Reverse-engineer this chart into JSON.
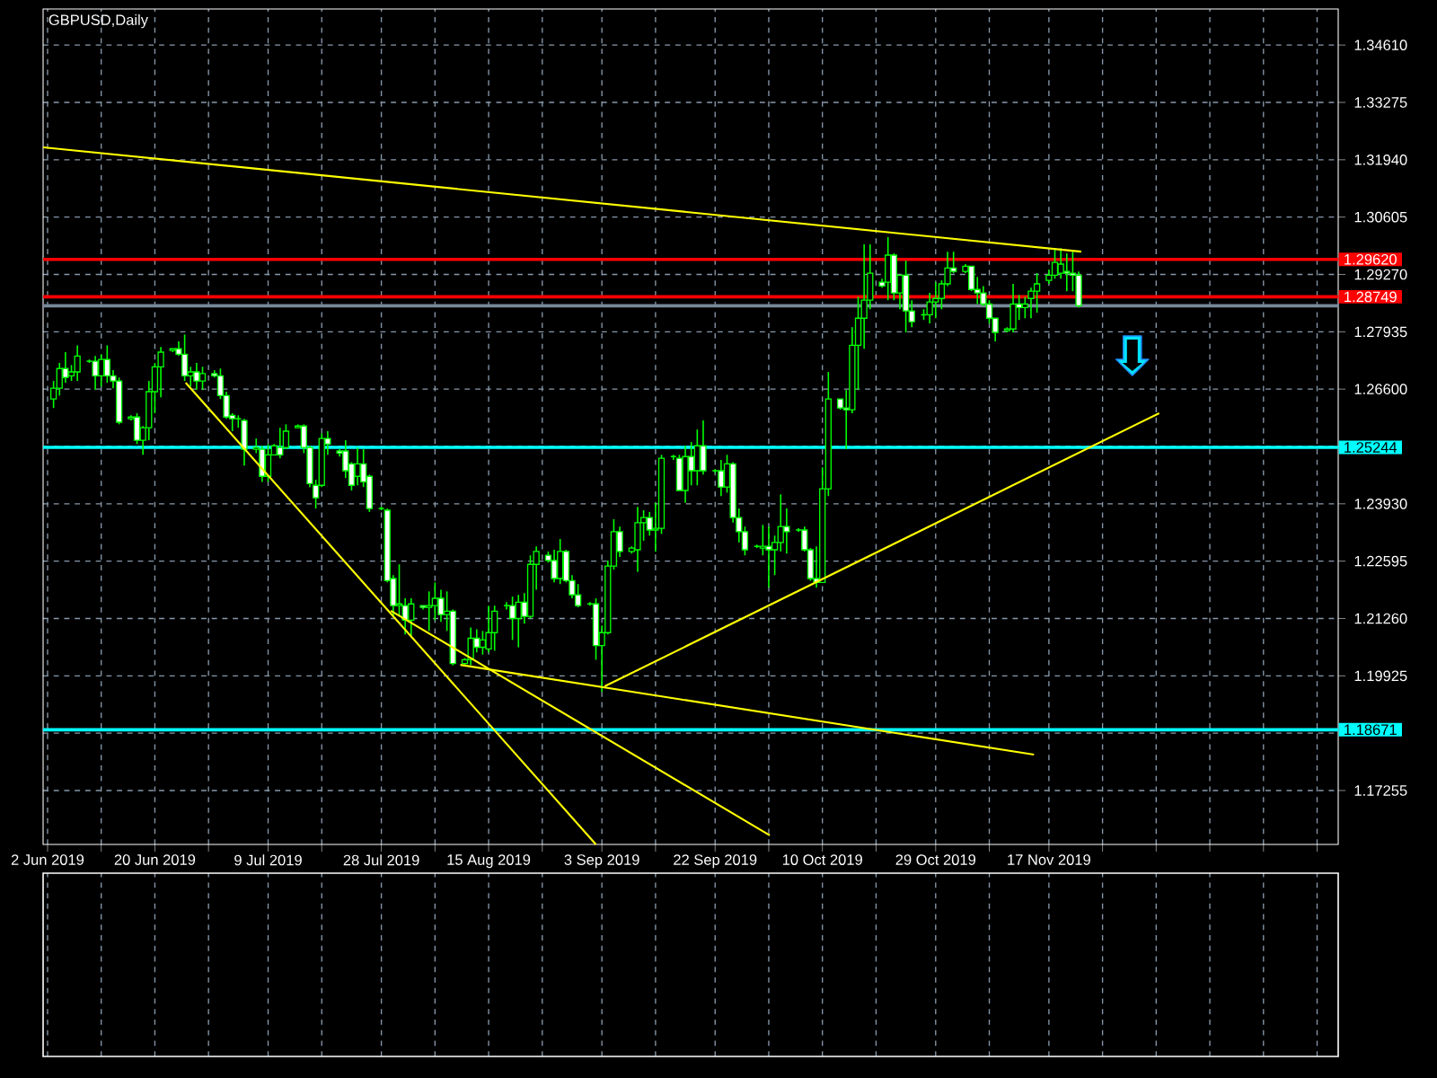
{
  "chart_data": {
    "type": "candlestick",
    "title": "GBPUSD,Daily",
    "color": "#00ff00",
    "x": [
      "2019-06-03",
      "2019-06-04",
      "2019-06-05",
      "2019-06-06",
      "2019-06-07",
      "2019-06-09",
      "2019-06-10",
      "2019-06-11",
      "2019-06-12",
      "2019-06-13",
      "2019-06-14",
      "2019-06-16",
      "2019-06-17",
      "2019-06-18",
      "2019-06-19",
      "2019-06-20",
      "2019-06-21",
      "2019-06-23",
      "2019-06-24",
      "2019-06-25",
      "2019-06-26",
      "2019-06-27",
      "2019-06-28",
      "2019-06-30",
      "2019-07-01",
      "2019-07-02",
      "2019-07-03",
      "2019-07-04",
      "2019-07-05",
      "2019-07-07",
      "2019-07-08",
      "2019-07-09",
      "2019-07-10",
      "2019-07-11",
      "2019-07-12",
      "2019-07-14",
      "2019-07-15",
      "2019-07-16",
      "2019-07-17",
      "2019-07-18",
      "2019-07-19",
      "2019-07-21",
      "2019-07-22",
      "2019-07-23",
      "2019-07-24",
      "2019-07-25",
      "2019-07-26",
      "2019-07-28",
      "2019-07-29",
      "2019-07-30",
      "2019-07-31",
      "2019-08-01",
      "2019-08-02",
      "2019-08-04",
      "2019-08-05",
      "2019-08-06",
      "2019-08-07",
      "2019-08-08",
      "2019-08-09",
      "2019-08-11",
      "2019-08-12",
      "2019-08-13",
      "2019-08-14",
      "2019-08-15",
      "2019-08-16",
      "2019-08-18",
      "2019-08-19",
      "2019-08-20",
      "2019-08-21",
      "2019-08-22",
      "2019-08-23",
      "2019-08-25",
      "2019-08-26",
      "2019-08-27",
      "2019-08-28",
      "2019-08-29",
      "2019-08-30",
      "2019-09-01",
      "2019-09-02",
      "2019-09-03",
      "2019-09-04",
      "2019-09-05",
      "2019-09-06",
      "2019-09-08",
      "2019-09-09",
      "2019-09-10",
      "2019-09-11",
      "2019-09-12",
      "2019-09-13",
      "2019-09-15",
      "2019-09-16",
      "2019-09-17",
      "2019-09-18",
      "2019-09-19",
      "2019-09-20",
      "2019-09-22",
      "2019-09-23",
      "2019-09-24",
      "2019-09-25",
      "2019-09-26",
      "2019-09-27",
      "2019-09-29",
      "2019-09-30",
      "2019-10-01",
      "2019-10-02",
      "2019-10-03",
      "2019-10-04",
      "2019-10-06",
      "2019-10-07",
      "2019-10-08",
      "2019-10-09",
      "2019-10-10",
      "2019-10-11",
      "2019-10-13",
      "2019-10-14",
      "2019-10-15",
      "2019-10-16",
      "2019-10-17",
      "2019-10-18",
      "2019-10-20",
      "2019-10-21",
      "2019-10-22",
      "2019-10-23",
      "2019-10-24",
      "2019-10-25",
      "2019-10-27",
      "2019-10-28",
      "2019-10-29",
      "2019-10-30",
      "2019-10-31",
      "2019-11-01",
      "2019-11-03",
      "2019-11-04",
      "2019-11-05",
      "2019-11-06",
      "2019-11-07",
      "2019-11-08",
      "2019-11-10",
      "2019-11-11",
      "2019-11-12",
      "2019-11-13",
      "2019-11-14",
      "2019-11-15",
      "2019-11-17",
      "2019-11-18",
      "2019-11-19",
      "2019-11-20",
      "2019-11-21",
      "2019-11-22"
    ],
    "ohlc": [
      [
        1.2637,
        1.2679,
        1.2616,
        1.2662
      ],
      [
        1.2662,
        1.2721,
        1.2645,
        1.2708
      ],
      [
        1.2708,
        1.2746,
        1.2675,
        1.2687
      ],
      [
        1.2691,
        1.2716,
        1.2679,
        1.27
      ],
      [
        1.27,
        1.2762,
        1.2679,
        1.2737
      ],
      [
        1.2725,
        1.2729,
        1.2721,
        1.2725
      ],
      [
        1.2725,
        1.2737,
        1.2658,
        1.2691
      ],
      [
        1.2691,
        1.2741,
        1.2666,
        1.2729
      ],
      [
        1.2729,
        1.2762,
        1.2675,
        1.2691
      ],
      [
        1.2691,
        1.2704,
        1.2662,
        1.2679
      ],
      [
        1.2679,
        1.2687,
        1.2578,
        1.2583
      ],
      [
        1.2591,
        1.2599,
        1.2587,
        1.2595
      ],
      [
        1.2595,
        1.2604,
        1.2532,
        1.2541
      ],
      [
        1.2541,
        1.2574,
        1.2507,
        1.257
      ],
      [
        1.257,
        1.2679,
        1.2541,
        1.2654
      ],
      [
        1.2654,
        1.2721,
        1.2604,
        1.2712
      ],
      [
        1.2712,
        1.2758,
        1.2641,
        1.2746
      ],
      [
        1.275,
        1.2754,
        1.2746,
        1.2754
      ],
      [
        1.2754,
        1.2771,
        1.2737,
        1.2741
      ],
      [
        1.2741,
        1.2787,
        1.2679,
        1.2691
      ],
      [
        1.2691,
        1.2712,
        1.2666,
        1.27
      ],
      [
        1.27,
        1.2721,
        1.2658,
        1.2679
      ],
      [
        1.2679,
        1.2712,
        1.2658,
        1.2696
      ],
      [
        1.2696,
        1.2704,
        1.2687,
        1.2691
      ],
      [
        1.2691,
        1.2708,
        1.2637,
        1.2645
      ],
      [
        1.2645,
        1.2654,
        1.2591,
        1.2595
      ],
      [
        1.2599,
        1.2604,
        1.2562,
        1.2591
      ],
      [
        1.2591,
        1.2599,
        1.257,
        1.2591
      ],
      [
        1.2587,
        1.2591,
        1.2482,
        1.252
      ],
      [
        1.252,
        1.2545,
        1.2511,
        1.2524
      ],
      [
        1.252,
        1.2528,
        1.2444,
        1.2457
      ],
      [
        1.2457,
        1.2532,
        1.2444,
        1.2507
      ],
      [
        1.2507,
        1.2532,
        1.2507,
        1.2528
      ],
      [
        1.2524,
        1.257,
        1.2499,
        1.2507
      ],
      [
        1.2524,
        1.2578,
        1.252,
        1.2562
      ],
      [
        1.257,
        1.2578,
        1.257,
        1.2574
      ],
      [
        1.2574,
        1.2578,
        1.2511,
        1.2524
      ],
      [
        1.2524,
        1.2528,
        1.2432,
        1.244
      ],
      [
        1.2436,
        1.2449,
        1.2382,
        1.2407
      ],
      [
        1.2436,
        1.2557,
        1.2432,
        1.2545
      ],
      [
        1.2545,
        1.2562,
        1.2507,
        1.2532
      ],
      [
        1.2516,
        1.252,
        1.2503,
        1.2511
      ],
      [
        1.2516,
        1.2541,
        1.2453,
        1.247
      ],
      [
        1.2486,
        1.249,
        1.2424,
        1.2436
      ],
      [
        1.2457,
        1.2524,
        1.2436,
        1.2486
      ],
      [
        1.2486,
        1.252,
        1.2432,
        1.2444
      ],
      [
        1.2457,
        1.2461,
        1.2374,
        1.2382
      ],
      [
        1.2382,
        1.2386,
        1.2378,
        1.2382
      ],
      [
        1.2378,
        1.2382,
        1.221,
        1.2214
      ],
      [
        1.2219,
        1.2227,
        1.2131,
        1.2156
      ],
      [
        1.2156,
        1.2252,
        1.2131,
        1.216
      ],
      [
        1.2156,
        1.2173,
        1.2089,
        1.2122
      ],
      [
        1.2122,
        1.2173,
        1.2084,
        1.216
      ],
      [
        1.2156,
        1.2156,
        1.2147,
        1.2152
      ],
      [
        1.2152,
        1.2189,
        1.2097,
        1.2156
      ],
      [
        1.2156,
        1.221,
        1.2122,
        1.2173
      ],
      [
        1.2173,
        1.2193,
        1.2118,
        1.2135
      ],
      [
        1.2135,
        1.2189,
        1.2097,
        1.2143
      ],
      [
        1.2143,
        1.2147,
        1.2017,
        1.2021
      ],
      [
        1.2021,
        1.2034,
        1.2017,
        1.203
      ],
      [
        1.203,
        1.2105,
        1.2017,
        1.208
      ],
      [
        1.208,
        1.2101,
        1.2047,
        1.2059
      ],
      [
        1.2059,
        1.2097,
        1.2042,
        1.2076
      ],
      [
        1.2055,
        1.2156,
        1.2047,
        1.2093
      ],
      [
        1.2093,
        1.2156,
        1.2051,
        1.2143
      ],
      [
        1.2156,
        1.2164,
        1.2147,
        1.2156
      ],
      [
        1.2156,
        1.2177,
        1.2076,
        1.2126
      ],
      [
        1.2126,
        1.2181,
        1.2059,
        1.2164
      ],
      [
        1.2164,
        1.2185,
        1.2114,
        1.2131
      ],
      [
        1.2131,
        1.2273,
        1.2126,
        1.2252
      ],
      [
        1.2252,
        1.2294,
        1.2193,
        1.2282
      ],
      [
        1.2273,
        1.2282,
        1.2256,
        1.2261
      ],
      [
        1.2261,
        1.2286,
        1.221,
        1.2219
      ],
      [
        1.2219,
        1.2311,
        1.2206,
        1.2282
      ],
      [
        1.2282,
        1.2286,
        1.221,
        1.2214
      ],
      [
        1.2214,
        1.2227,
        1.2173,
        1.2181
      ],
      [
        1.2181,
        1.2206,
        1.2152,
        1.2156
      ],
      [
        1.216,
        1.2164,
        1.2156,
        1.216
      ],
      [
        1.216,
        1.2173,
        1.203,
        1.2063
      ],
      [
        1.2063,
        1.211,
        1.1955,
        1.2093
      ],
      [
        1.2093,
        1.2261,
        1.2089,
        1.2248
      ],
      [
        1.2248,
        1.2357,
        1.224,
        1.2328
      ],
      [
        1.2328,
        1.234,
        1.2269,
        1.2282
      ],
      [
        1.2282,
        1.2294,
        1.2277,
        1.229
      ],
      [
        1.2286,
        1.2386,
        1.2235,
        1.2349
      ],
      [
        1.2349,
        1.2378,
        1.2307,
        1.2361
      ],
      [
        1.2361,
        1.2374,
        1.2319,
        1.2332
      ],
      [
        1.2332,
        1.2395,
        1.2282,
        1.2336
      ],
      [
        1.2336,
        1.2507,
        1.2323,
        1.2499
      ],
      [
        1.2503,
        1.2507,
        1.2495,
        1.2503
      ],
      [
        1.2499,
        1.2507,
        1.2424,
        1.2424
      ],
      [
        1.2424,
        1.2528,
        1.2395,
        1.2503
      ],
      [
        1.2503,
        1.2537,
        1.2436,
        1.247
      ],
      [
        1.247,
        1.2566,
        1.2436,
        1.2528
      ],
      [
        1.2528,
        1.2587,
        1.2461,
        1.247
      ],
      [
        1.247,
        1.2474,
        1.2465,
        1.247
      ],
      [
        1.247,
        1.2495,
        1.2411,
        1.2432
      ],
      [
        1.2432,
        1.2507,
        1.2419,
        1.2486
      ],
      [
        1.2486,
        1.249,
        1.2349,
        1.2361
      ],
      [
        1.2361,
        1.2382,
        1.2303,
        1.2328
      ],
      [
        1.2328,
        1.234,
        1.2273,
        1.2286
      ],
      [
        1.2294,
        1.2298,
        1.229,
        1.2294
      ],
      [
        1.229,
        1.2344,
        1.2273,
        1.2294
      ],
      [
        1.2294,
        1.234,
        1.2198,
        1.2286
      ],
      [
        1.2286,
        1.2319,
        1.2227,
        1.2303
      ],
      [
        1.2303,
        1.2415,
        1.2282,
        1.234
      ],
      [
        1.234,
        1.2382,
        1.2277,
        1.2328
      ],
      [
        1.2332,
        1.2336,
        1.2328,
        1.2332
      ],
      [
        1.2332,
        1.234,
        1.2282,
        1.2286
      ],
      [
        1.2286,
        1.229,
        1.2214,
        1.2219
      ],
      [
        1.2219,
        1.2294,
        1.2198,
        1.221
      ],
      [
        1.221,
        1.2478,
        1.221,
        1.2428
      ],
      [
        1.2428,
        1.27,
        1.2411,
        1.2637
      ],
      [
        1.2637,
        1.2637,
        1.2612,
        1.2616
      ],
      [
        1.2616,
        1.2658,
        1.252,
        1.2612
      ],
      [
        1.2612,
        1.2804,
        1.2604,
        1.2762
      ],
      [
        1.2762,
        1.2875,
        1.2658,
        1.2825
      ],
      [
        1.2825,
        1.2997,
        1.2754,
        1.2867
      ],
      [
        1.2867,
        1.2997,
        1.2846,
        1.293
      ],
      [
        1.2909,
        1.2917,
        1.2896,
        1.29
      ],
      [
        1.2909,
        1.3014,
        1.2867,
        1.2972
      ],
      [
        1.2972,
        1.2976,
        1.2867,
        1.2884
      ],
      [
        1.2884,
        1.2925,
        1.2846,
        1.2925
      ],
      [
        1.2925,
        1.2959,
        1.2792,
        1.2842
      ],
      [
        1.2842,
        1.2867,
        1.2804,
        1.2817
      ],
      [
        1.2833,
        1.2846,
        1.2821,
        1.2833
      ],
      [
        1.2833,
        1.2884,
        1.2813,
        1.2863
      ],
      [
        1.2863,
        1.2909,
        1.2825,
        1.2871
      ],
      [
        1.2871,
        1.2913,
        1.2846,
        1.2905
      ],
      [
        1.2905,
        1.298,
        1.29,
        1.2942
      ],
      [
        1.2942,
        1.298,
        1.293,
        1.2934
      ],
      [
        1.2934,
        1.2951,
        1.293,
        1.2946
      ],
      [
        1.2946,
        1.2946,
        1.2888,
        1.2892
      ],
      [
        1.2892,
        1.2921,
        1.2858,
        1.2884
      ],
      [
        1.2884,
        1.29,
        1.2854,
        1.2858
      ],
      [
        1.2858,
        1.2867,
        1.2813,
        1.2825
      ],
      [
        1.2825,
        1.2825,
        1.2771,
        1.2792
      ],
      [
        1.2796,
        1.2804,
        1.2792,
        1.28
      ],
      [
        1.28,
        1.2905,
        1.2792,
        1.2858
      ],
      [
        1.2858,
        1.2879,
        1.2821,
        1.285
      ],
      [
        1.285,
        1.2875,
        1.2825,
        1.2858
      ],
      [
        1.2871,
        1.2896,
        1.2825,
        1.2888
      ],
      [
        1.2888,
        1.293,
        1.2838,
        1.2905
      ],
      [
        1.2913,
        1.2938,
        1.2905,
        1.2925
      ],
      [
        1.2925,
        1.2988,
        1.2917,
        1.2955
      ],
      [
        1.293,
        1.2988,
        1.2917,
        1.2951
      ],
      [
        1.2934,
        1.2976,
        1.2888,
        1.293
      ],
      [
        1.293,
        1.298,
        1.2888,
        1.2925
      ],
      [
        1.2925,
        1.2934,
        1.285,
        1.2854
      ]
    ],
    "series": [
      {
        "type": "line",
        "color": "#ffff00",
        "x": [
          "2019-06-01T06:00",
          "2019-11-22T10:00"
        ],
        "values": [
          1.3223,
          1.298
        ]
      },
      {
        "type": "line",
        "color": "#ffff00",
        "x": [
          "2019-06-25T04:00",
          "2019-09-02"
        ],
        "values": [
          1.2675,
          1.16
        ]
      },
      {
        "type": "line",
        "color": "#ffff00",
        "x": [
          "2019-07-29T14:00",
          "2019-10-01T04:00"
        ],
        "values": [
          1.2144,
          1.1621
        ]
      },
      {
        "type": "line",
        "color": "#ffff00",
        "x": [
          "2019-08-10T06:00",
          "2019-11-14T12:00"
        ],
        "values": [
          1.2018,
          1.1809
        ]
      },
      {
        "type": "line",
        "color": "#ffff00",
        "x": [
          "2019-09-03T11:00",
          "2019-12-05T12:00"
        ],
        "values": [
          1.1968,
          1.2604
        ]
      }
    ],
    "xlim": [
      "2019-06-01T06:00",
      "2020-01-04T13:00"
    ],
    "ylim": [
      1.16,
      1.3545
    ],
    "xticks": [
      {
        "value": "2019-06-02",
        "label": "2 Jun 2019"
      },
      {
        "value": "2019-06-11",
        "label": null
      },
      {
        "value": "2019-06-20",
        "label": "20 Jun 2019"
      },
      {
        "value": "2019-06-29",
        "label": null
      },
      {
        "value": "2019-07-09",
        "label": "9 Jul 2019"
      },
      {
        "value": "2019-07-18",
        "label": null
      },
      {
        "value": "2019-07-28",
        "label": "28 Jul 2019"
      },
      {
        "value": "2019-08-06",
        "label": null
      },
      {
        "value": "2019-08-15",
        "label": "15 Aug 2019"
      },
      {
        "value": "2019-08-24",
        "label": null
      },
      {
        "value": "2019-09-03",
        "label": "3 Sep 2019"
      },
      {
        "value": "2019-09-12",
        "label": null
      },
      {
        "value": "2019-09-22",
        "label": "22 Sep 2019"
      },
      {
        "value": "2019-10-01",
        "label": null
      },
      {
        "value": "2019-10-10",
        "label": "10 Oct 2019"
      },
      {
        "value": "2019-10-19",
        "label": null
      },
      {
        "value": "2019-10-29",
        "label": "29 Oct 2019"
      },
      {
        "value": "2019-11-07",
        "label": null
      },
      {
        "value": "2019-11-17",
        "label": "17 Nov 2019"
      },
      {
        "value": "2019-11-26",
        "label": null
      },
      {
        "value": "2019-12-05",
        "label": null
      },
      {
        "value": "2019-12-14",
        "label": null
      },
      {
        "value": "2019-12-23",
        "label": null
      },
      {
        "value": "2020-01-01",
        "label": null
      }
    ],
    "yticks": [
      {
        "value": 1.3461,
        "label": "1.34610"
      },
      {
        "value": 1.33275,
        "label": "1.33275"
      },
      {
        "value": 1.3194,
        "label": "1.31940"
      },
      {
        "value": 1.30605,
        "label": "1.30605"
      },
      {
        "value": 1.2927,
        "label": "1.29270"
      },
      {
        "value": 1.27935,
        "label": "1.27935"
      },
      {
        "value": 1.266,
        "label": "1.26600"
      },
      {
        "value": 1.25265,
        "label": null
      },
      {
        "value": 1.2393,
        "label": "1.23930"
      },
      {
        "value": 1.22595,
        "label": "1.22595"
      },
      {
        "value": 1.2126,
        "label": "1.21260"
      },
      {
        "value": 1.19925,
        "label": "1.19925"
      },
      {
        "value": 1.1859,
        "label": null
      },
      {
        "value": 1.17255,
        "label": "1.17255"
      }
    ],
    "ref_lines": [
      {
        "axis": "y",
        "value": 1.2962,
        "label": "1.29620",
        "color": "#ff0000"
      },
      {
        "axis": "y",
        "value": 1.28749,
        "label": "1.28749",
        "color": "#ff0000"
      },
      {
        "axis": "y",
        "value": 1.2854,
        "color": "#778899"
      },
      {
        "axis": "y",
        "value": 1.25244,
        "label": "1.25244",
        "color": "#00ffff"
      },
      {
        "axis": "y",
        "value": 1.18671,
        "label": "1.18671",
        "color": "#00ffff"
      }
    ],
    "grid": true
  }
}
